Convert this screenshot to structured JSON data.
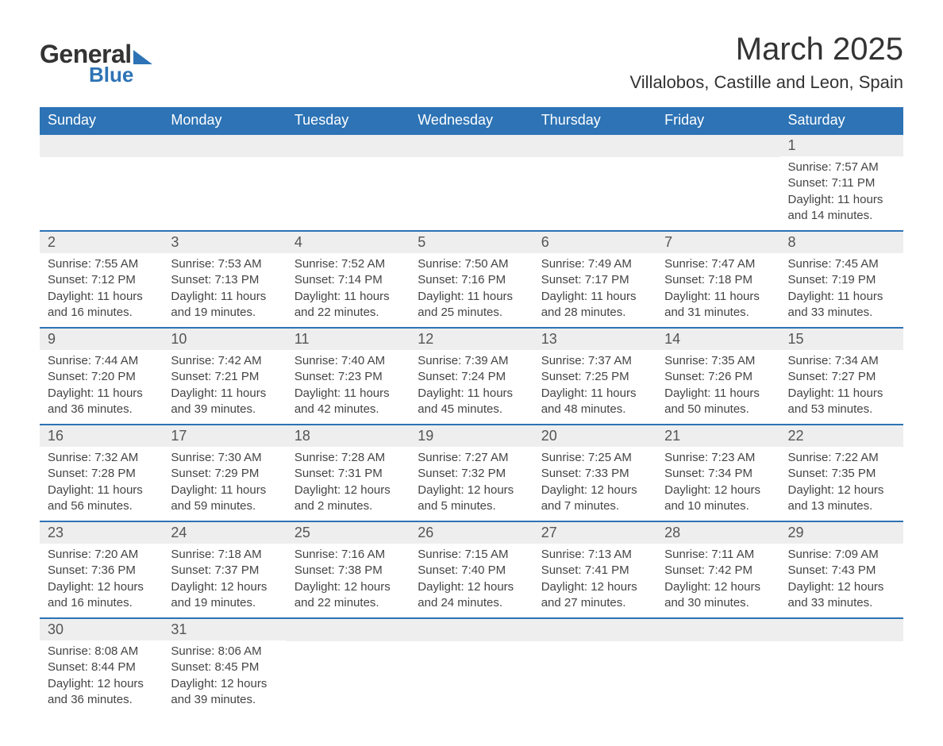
{
  "logo": {
    "top": "General",
    "bottom": "Blue"
  },
  "title": "March 2025",
  "location": "Villalobos, Castille and Leon, Spain",
  "colors": {
    "header_bg": "#2d73b5",
    "header_text": "#ffffff",
    "daynum_bg": "#eeeeee",
    "row_divider": "#2d73b5",
    "body_text": "#444444",
    "title_text": "#333333"
  },
  "day_headers": [
    "Sunday",
    "Monday",
    "Tuesday",
    "Wednesday",
    "Thursday",
    "Friday",
    "Saturday"
  ],
  "weeks": [
    [
      {
        "day": "",
        "sunrise": "",
        "sunset": "",
        "daylight": ""
      },
      {
        "day": "",
        "sunrise": "",
        "sunset": "",
        "daylight": ""
      },
      {
        "day": "",
        "sunrise": "",
        "sunset": "",
        "daylight": ""
      },
      {
        "day": "",
        "sunrise": "",
        "sunset": "",
        "daylight": ""
      },
      {
        "day": "",
        "sunrise": "",
        "sunset": "",
        "daylight": ""
      },
      {
        "day": "",
        "sunrise": "",
        "sunset": "",
        "daylight": ""
      },
      {
        "day": "1",
        "sunrise": "Sunrise: 7:57 AM",
        "sunset": "Sunset: 7:11 PM",
        "daylight": "Daylight: 11 hours and 14 minutes."
      }
    ],
    [
      {
        "day": "2",
        "sunrise": "Sunrise: 7:55 AM",
        "sunset": "Sunset: 7:12 PM",
        "daylight": "Daylight: 11 hours and 16 minutes."
      },
      {
        "day": "3",
        "sunrise": "Sunrise: 7:53 AM",
        "sunset": "Sunset: 7:13 PM",
        "daylight": "Daylight: 11 hours and 19 minutes."
      },
      {
        "day": "4",
        "sunrise": "Sunrise: 7:52 AM",
        "sunset": "Sunset: 7:14 PM",
        "daylight": "Daylight: 11 hours and 22 minutes."
      },
      {
        "day": "5",
        "sunrise": "Sunrise: 7:50 AM",
        "sunset": "Sunset: 7:16 PM",
        "daylight": "Daylight: 11 hours and 25 minutes."
      },
      {
        "day": "6",
        "sunrise": "Sunrise: 7:49 AM",
        "sunset": "Sunset: 7:17 PM",
        "daylight": "Daylight: 11 hours and 28 minutes."
      },
      {
        "day": "7",
        "sunrise": "Sunrise: 7:47 AM",
        "sunset": "Sunset: 7:18 PM",
        "daylight": "Daylight: 11 hours and 31 minutes."
      },
      {
        "day": "8",
        "sunrise": "Sunrise: 7:45 AM",
        "sunset": "Sunset: 7:19 PM",
        "daylight": "Daylight: 11 hours and 33 minutes."
      }
    ],
    [
      {
        "day": "9",
        "sunrise": "Sunrise: 7:44 AM",
        "sunset": "Sunset: 7:20 PM",
        "daylight": "Daylight: 11 hours and 36 minutes."
      },
      {
        "day": "10",
        "sunrise": "Sunrise: 7:42 AM",
        "sunset": "Sunset: 7:21 PM",
        "daylight": "Daylight: 11 hours and 39 minutes."
      },
      {
        "day": "11",
        "sunrise": "Sunrise: 7:40 AM",
        "sunset": "Sunset: 7:23 PM",
        "daylight": "Daylight: 11 hours and 42 minutes."
      },
      {
        "day": "12",
        "sunrise": "Sunrise: 7:39 AM",
        "sunset": "Sunset: 7:24 PM",
        "daylight": "Daylight: 11 hours and 45 minutes."
      },
      {
        "day": "13",
        "sunrise": "Sunrise: 7:37 AM",
        "sunset": "Sunset: 7:25 PM",
        "daylight": "Daylight: 11 hours and 48 minutes."
      },
      {
        "day": "14",
        "sunrise": "Sunrise: 7:35 AM",
        "sunset": "Sunset: 7:26 PM",
        "daylight": "Daylight: 11 hours and 50 minutes."
      },
      {
        "day": "15",
        "sunrise": "Sunrise: 7:34 AM",
        "sunset": "Sunset: 7:27 PM",
        "daylight": "Daylight: 11 hours and 53 minutes."
      }
    ],
    [
      {
        "day": "16",
        "sunrise": "Sunrise: 7:32 AM",
        "sunset": "Sunset: 7:28 PM",
        "daylight": "Daylight: 11 hours and 56 minutes."
      },
      {
        "day": "17",
        "sunrise": "Sunrise: 7:30 AM",
        "sunset": "Sunset: 7:29 PM",
        "daylight": "Daylight: 11 hours and 59 minutes."
      },
      {
        "day": "18",
        "sunrise": "Sunrise: 7:28 AM",
        "sunset": "Sunset: 7:31 PM",
        "daylight": "Daylight: 12 hours and 2 minutes."
      },
      {
        "day": "19",
        "sunrise": "Sunrise: 7:27 AM",
        "sunset": "Sunset: 7:32 PM",
        "daylight": "Daylight: 12 hours and 5 minutes."
      },
      {
        "day": "20",
        "sunrise": "Sunrise: 7:25 AM",
        "sunset": "Sunset: 7:33 PM",
        "daylight": "Daylight: 12 hours and 7 minutes."
      },
      {
        "day": "21",
        "sunrise": "Sunrise: 7:23 AM",
        "sunset": "Sunset: 7:34 PM",
        "daylight": "Daylight: 12 hours and 10 minutes."
      },
      {
        "day": "22",
        "sunrise": "Sunrise: 7:22 AM",
        "sunset": "Sunset: 7:35 PM",
        "daylight": "Daylight: 12 hours and 13 minutes."
      }
    ],
    [
      {
        "day": "23",
        "sunrise": "Sunrise: 7:20 AM",
        "sunset": "Sunset: 7:36 PM",
        "daylight": "Daylight: 12 hours and 16 minutes."
      },
      {
        "day": "24",
        "sunrise": "Sunrise: 7:18 AM",
        "sunset": "Sunset: 7:37 PM",
        "daylight": "Daylight: 12 hours and 19 minutes."
      },
      {
        "day": "25",
        "sunrise": "Sunrise: 7:16 AM",
        "sunset": "Sunset: 7:38 PM",
        "daylight": "Daylight: 12 hours and 22 minutes."
      },
      {
        "day": "26",
        "sunrise": "Sunrise: 7:15 AM",
        "sunset": "Sunset: 7:40 PM",
        "daylight": "Daylight: 12 hours and 24 minutes."
      },
      {
        "day": "27",
        "sunrise": "Sunrise: 7:13 AM",
        "sunset": "Sunset: 7:41 PM",
        "daylight": "Daylight: 12 hours and 27 minutes."
      },
      {
        "day": "28",
        "sunrise": "Sunrise: 7:11 AM",
        "sunset": "Sunset: 7:42 PM",
        "daylight": "Daylight: 12 hours and 30 minutes."
      },
      {
        "day": "29",
        "sunrise": "Sunrise: 7:09 AM",
        "sunset": "Sunset: 7:43 PM",
        "daylight": "Daylight: 12 hours and 33 minutes."
      }
    ],
    [
      {
        "day": "30",
        "sunrise": "Sunrise: 8:08 AM",
        "sunset": "Sunset: 8:44 PM",
        "daylight": "Daylight: 12 hours and 36 minutes."
      },
      {
        "day": "31",
        "sunrise": "Sunrise: 8:06 AM",
        "sunset": "Sunset: 8:45 PM",
        "daylight": "Daylight: 12 hours and 39 minutes."
      },
      {
        "day": "",
        "sunrise": "",
        "sunset": "",
        "daylight": ""
      },
      {
        "day": "",
        "sunrise": "",
        "sunset": "",
        "daylight": ""
      },
      {
        "day": "",
        "sunrise": "",
        "sunset": "",
        "daylight": ""
      },
      {
        "day": "",
        "sunrise": "",
        "sunset": "",
        "daylight": ""
      },
      {
        "day": "",
        "sunrise": "",
        "sunset": "",
        "daylight": ""
      }
    ]
  ]
}
